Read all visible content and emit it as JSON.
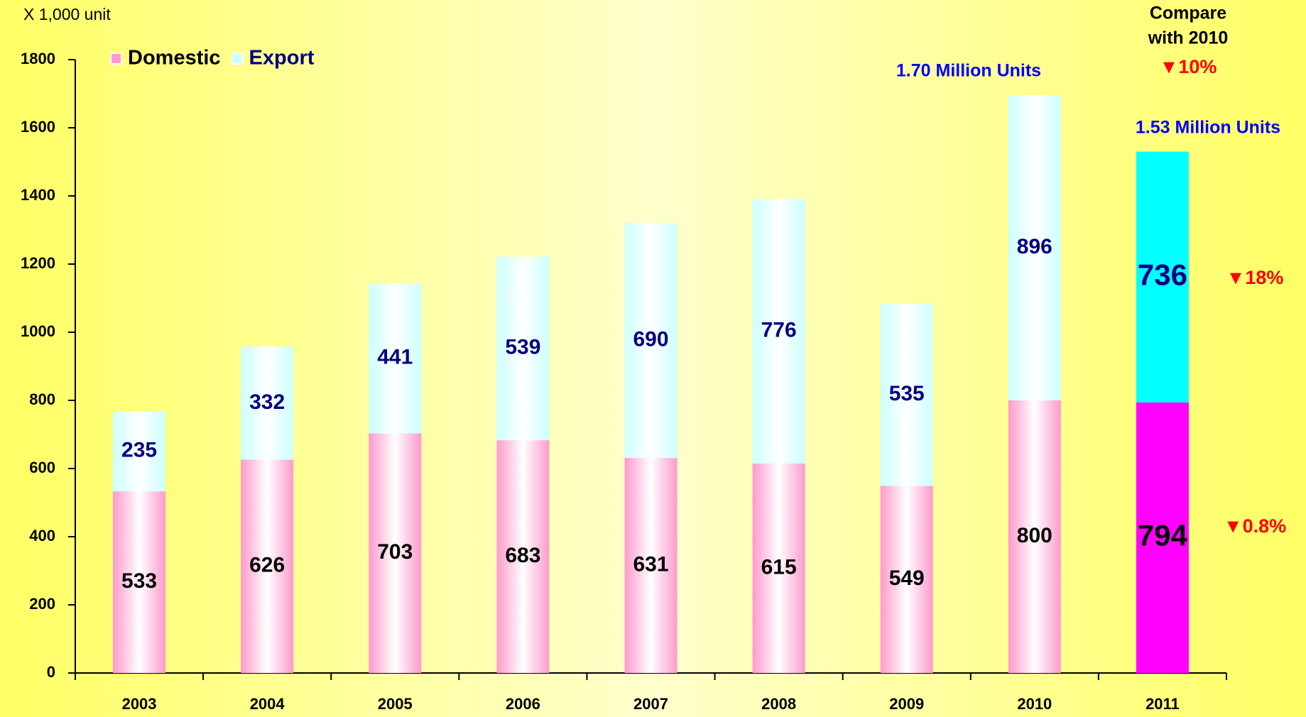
{
  "chart_data": {
    "type": "stacked_bar",
    "unit_label": "X 1,000 unit",
    "categories": [
      "2003",
      "2004",
      "2005",
      "2006",
      "2007",
      "2008",
      "2009",
      "2010",
      "2011"
    ],
    "series": [
      {
        "name": "Domestic",
        "color": "#ff99cc",
        "colors": [
          "#ff99cc",
          "#ff99cc",
          "#ff99cc",
          "#ff99cc",
          "#ff99cc",
          "#ff99cc",
          "#ff99cc",
          "#ff99cc",
          "#ff00ff"
        ],
        "values": [
          533,
          626,
          703,
          683,
          631,
          615,
          549,
          800,
          794
        ]
      },
      {
        "name": "Export",
        "color": "#ccffff",
        "colors": [
          "#ccffff",
          "#ccffff",
          "#ccffff",
          "#ccffff",
          "#ccffff",
          "#ccffff",
          "#ccffff",
          "#ccffff",
          "#00ffff"
        ],
        "values": [
          235,
          332,
          441,
          539,
          690,
          776,
          535,
          896,
          736
        ]
      }
    ],
    "ylim": [
      0,
      1800
    ],
    "yticks": [
      0,
      200,
      400,
      600,
      800,
      1000,
      1200,
      1400,
      1600,
      1800
    ],
    "legend": "top-left",
    "compare_label": [
      "Compare",
      "with 2010"
    ],
    "annotations": {
      "total_change": "▼10%",
      "total_2010": "1.70 Million Units",
      "total_2011": "1.53 Million Units",
      "export_change": "▼18%",
      "domestic_change": "▼0.8%"
    }
  }
}
